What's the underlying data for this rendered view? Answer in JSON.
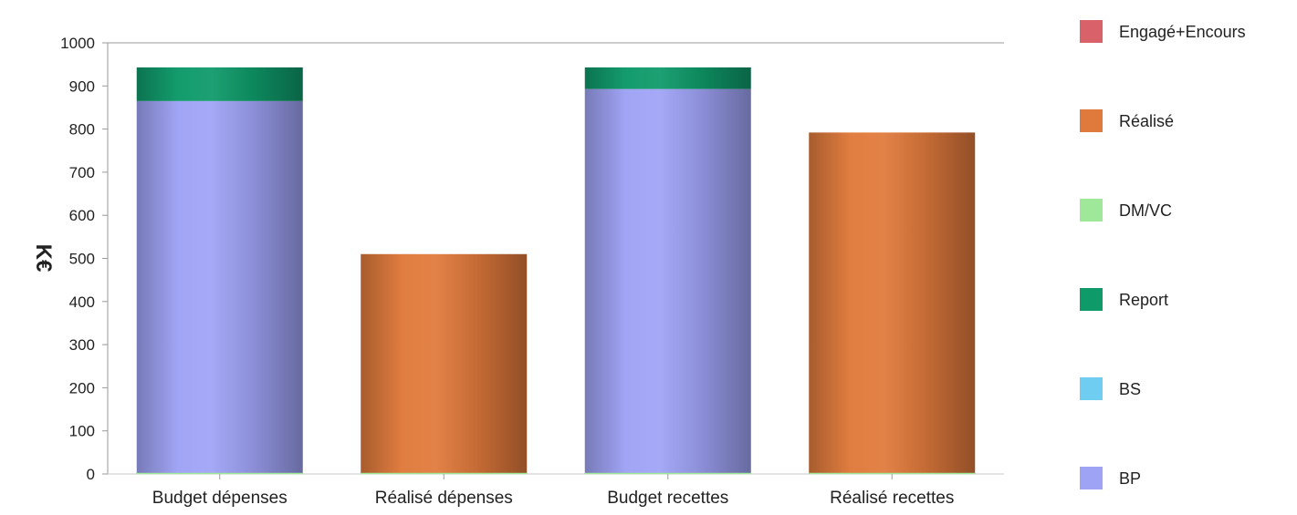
{
  "chart_data": {
    "type": "bar",
    "stacked": true,
    "ylabel": "K€",
    "ylim": [
      0,
      1000
    ],
    "yticks": [
      0,
      100,
      200,
      300,
      400,
      500,
      600,
      700,
      800,
      900,
      1000
    ],
    "categories": [
      "Budget dépenses",
      "Réalisé dépenses",
      "Budget recettes",
      "Réalisé recettes"
    ],
    "series": [
      {
        "name": "BP",
        "color": "#9fa3f5",
        "values": [
          865,
          0,
          893,
          0
        ]
      },
      {
        "name": "BS",
        "color": "#6ecdf0",
        "values": [
          0,
          0,
          0,
          0
        ]
      },
      {
        "name": "Report",
        "color": "#0f9a6a",
        "values": [
          78,
          0,
          50,
          0
        ]
      },
      {
        "name": "DM/VC",
        "color": "#9fe89a",
        "values": [
          0,
          0,
          0,
          0
        ]
      },
      {
        "name": "Réalisé",
        "color": "#e07a3c",
        "values": [
          0,
          510,
          0,
          792
        ]
      },
      {
        "name": "Engagé+Encours",
        "color": "#d9616a",
        "values": [
          0,
          0,
          0,
          0
        ]
      }
    ],
    "legend": {
      "position": "right",
      "order": [
        "Engagé+Encours",
        "Réalisé",
        "DM/VC",
        "Report",
        "BS",
        "BP"
      ]
    },
    "grid": false
  }
}
